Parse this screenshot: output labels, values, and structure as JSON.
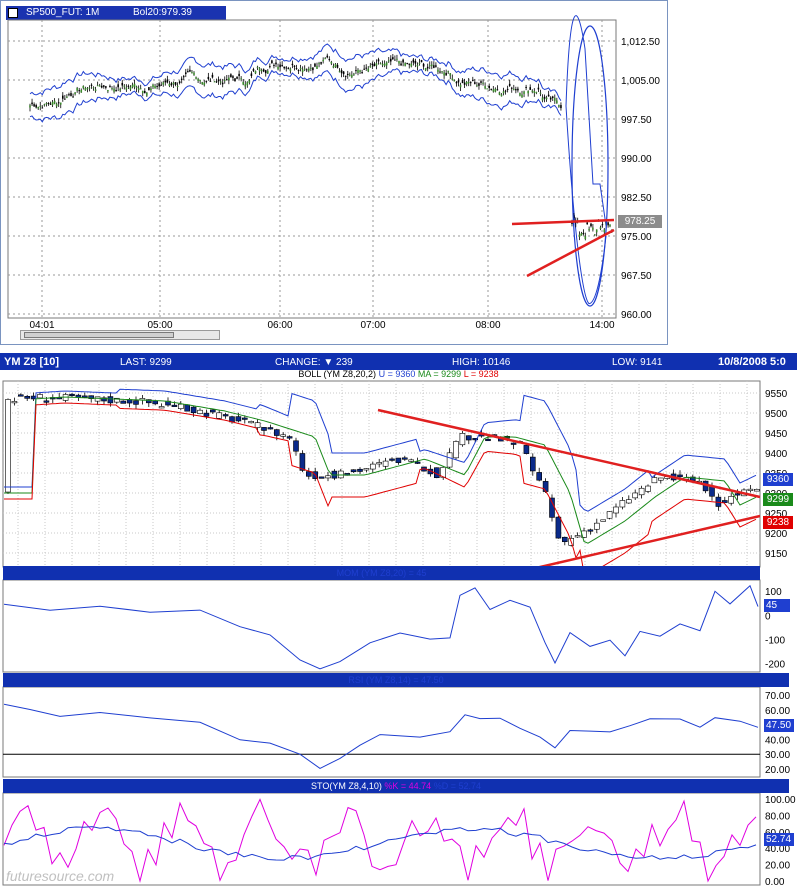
{
  "colors": {
    "bar_blue": "#0a2a8a",
    "band": "#1f3fd0",
    "mid": "#1a8a1a",
    "lower": "#e00000",
    "trend": "#e02020",
    "grid": "#9a9a9a",
    "pink": "#e000e0"
  },
  "top": {
    "window_icon": "window-icon",
    "symbol": "SP500_FUT: 1M",
    "study": "Bol20:979.39",
    "last_badge": "978.25",
    "y_ticks": [
      "1,012.50",
      "1,005.00",
      "997.50",
      "990.00",
      "982.50",
      "975.00",
      "967.50",
      "960.00"
    ],
    "x_ticks": [
      "04:01",
      "05:00",
      "06:00",
      "07:00",
      "08:00",
      "14:00"
    ]
  },
  "bottom": {
    "symbol": "YM Z8 [10]",
    "last": "LAST: 9299",
    "change": "CHANGE: ▼ 239",
    "high": "HIGH: 10146",
    "low": "LOW: 9141",
    "date": "10/8/2008 5:0",
    "boll_title": "BOLL (YM Z8,20,2)",
    "boll_u": "U = 9360",
    "boll_ma": "MA = 9299",
    "boll_l": "L = 9238",
    "y_ticks": [
      "9550",
      "9500",
      "9450",
      "9400",
      "9350",
      "9300",
      "9250",
      "9200",
      "9150"
    ],
    "badges": {
      "upper": "9360",
      "mid": "9299",
      "lower": "9238"
    },
    "mom_title": "MOM (YM Z8,20) = 45",
    "mom_ticks": [
      "100",
      "0",
      "-100",
      "-200"
    ],
    "mom_badge": "45",
    "rsi_title": "RSI (YM Z8,14) = 47.50",
    "rsi_ticks": [
      "70.00",
      "60.00",
      "50.00",
      "40.00",
      "30.00",
      "20.00"
    ],
    "rsi_badge": "47.50",
    "sto_title": "STO(YM Z8,4,10)",
    "sto_k": "%K = 44.74",
    "sto_d": "%D = 52.74",
    "sto_ticks": [
      "100.00",
      "80.00",
      "60.00",
      "40.00",
      "20.00",
      "0.00"
    ],
    "sto_badge": "52.74",
    "watermark": "futuresource.com"
  },
  "chart_data": [
    {
      "type": "line",
      "title": "SP500_FUT: 1M",
      "series": [
        {
          "name": "Bol20",
          "values": [
            1000,
            1001,
            1003,
            1004,
            1005,
            1006,
            1007,
            1006,
            1008,
            1008,
            1008,
            1009,
            1009,
            1010,
            1009,
            1008,
            1007,
            1006,
            1004,
            1002,
            975,
            977,
            978,
            978
          ]
        }
      ],
      "ylim": [
        960,
        1015
      ]
    },
    {
      "type": "line",
      "title": "BOLL (YM Z8,20,2)",
      "series": [
        {
          "name": "MA",
          "values": [
            9540,
            9530,
            9515,
            9500,
            9470,
            9420,
            9370,
            9350,
            9370,
            9390,
            9380,
            9440,
            9430,
            9390,
            9250,
            9180,
            9190,
            9220,
            9300,
            9350,
            9340,
            9320,
            9300,
            9299
          ]
        }
      ],
      "ylim": [
        9130,
        9570
      ]
    }
  ]
}
